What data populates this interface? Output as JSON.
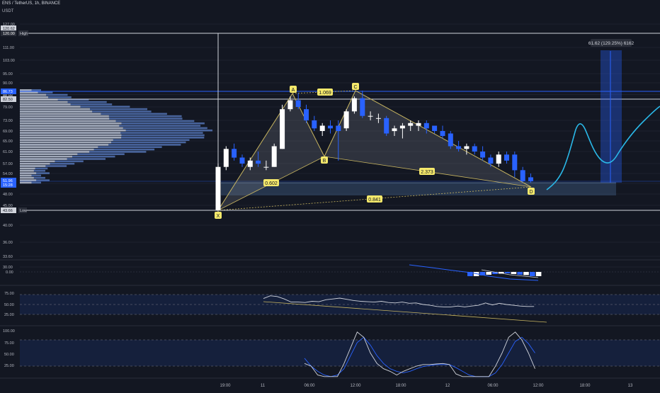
{
  "header": {
    "symbol": "ENS / TetherUS, 1h, BINANCE",
    "currency": "USDT"
  },
  "colors": {
    "background": "#131722",
    "bull_candle": "#ffffff",
    "bear_candle": "#2962ff",
    "pattern_line": "#c8b560",
    "pattern_fill": "#787b86",
    "forecast_line": "#2ab8e8",
    "target_box": "#2962ff",
    "zone_band": "#3d5a80",
    "volume_profile_up": "#5b7fc7",
    "volume_profile_down": "#b2b5be"
  },
  "price_axis": {
    "labels": [
      "127.00",
      "111.00",
      "103.00",
      "95.00",
      "90.00",
      "85.00",
      "79.00",
      "73.00",
      "69.00",
      "65.00",
      "61.00",
      "57.00",
      "54.00",
      "50.00",
      "48.00",
      "45.00",
      "40.00",
      "36.00",
      "33.60",
      "30.00"
    ],
    "badges": [
      {
        "text": "120.62",
        "style": "light"
      },
      {
        "text": "120.00",
        "style": "dark"
      },
      {
        "text": "86.73",
        "style": "blue"
      },
      {
        "text": "85.00",
        "style": "plain"
      },
      {
        "text": "82.50",
        "style": "light"
      },
      {
        "text": "51.96",
        "style": "blue"
      },
      {
        "text": "15:28",
        "style": "blue"
      },
      {
        "text": "43.66",
        "style": "light"
      }
    ],
    "high_label": "High",
    "low_label": "Low"
  },
  "time_axis": {
    "labels": [
      "19:00",
      "11",
      "06:00",
      "12:00",
      "18:00",
      "12",
      "06:00",
      "12:00",
      "18:00",
      "13",
      "06:00"
    ]
  },
  "pattern": {
    "points": [
      "X",
      "A",
      "B",
      "C",
      "D"
    ],
    "ratios": {
      "xb": "0.602",
      "ac": "1.069",
      "bd": "2.373",
      "xd": "0.841"
    }
  },
  "target_tooltip": "61.62 (129.25%) 6162",
  "macd_axis": {
    "labels": [
      "0.00"
    ]
  },
  "rsi_axis": {
    "labels": [
      "75.00",
      "50.00",
      "25.00"
    ]
  },
  "stoch_axis": {
    "labels": [
      "100.00",
      "75.00",
      "50.00",
      "25.00"
    ]
  },
  "chart_data": {
    "type": "candlestick",
    "symbol": "ENS / TetherUS",
    "interval": "1h",
    "exchange": "BINANCE",
    "candles": [
      {
        "o": 43.7,
        "h": 57,
        "l": 43.7,
        "c": 56
      },
      {
        "o": 56,
        "h": 63,
        "l": 55,
        "c": 62
      },
      {
        "o": 62,
        "h": 64,
        "l": 58,
        "c": 59
      },
      {
        "o": 59,
        "h": 60,
        "l": 56,
        "c": 57
      },
      {
        "o": 56,
        "h": 59,
        "l": 55,
        "c": 58
      },
      {
        "o": 58,
        "h": 61,
        "l": 56,
        "c": 57
      },
      {
        "o": 56,
        "h": 58,
        "l": 55,
        "c": 56
      },
      {
        "o": 56,
        "h": 64,
        "l": 56,
        "c": 63
      },
      {
        "o": 62,
        "h": 80,
        "l": 62,
        "c": 78
      },
      {
        "o": 78,
        "h": 84,
        "l": 77,
        "c": 82
      },
      {
        "o": 82,
        "h": 86,
        "l": 78,
        "c": 79
      },
      {
        "o": 78,
        "h": 80,
        "l": 72,
        "c": 73
      },
      {
        "o": 73,
        "h": 75,
        "l": 69,
        "c": 70
      },
      {
        "o": 69,
        "h": 72,
        "l": 67,
        "c": 71
      },
      {
        "o": 71,
        "h": 73,
        "l": 68,
        "c": 70
      },
      {
        "o": 71,
        "h": 73,
        "l": 58,
        "c": 69
      },
      {
        "o": 70,
        "h": 78,
        "l": 69,
        "c": 77
      },
      {
        "o": 77,
        "h": 84,
        "l": 76,
        "c": 83
      },
      {
        "o": 83,
        "h": 87,
        "l": 74,
        "c": 75
      },
      {
        "o": 75,
        "h": 77,
        "l": 73,
        "c": 75
      },
      {
        "o": 74,
        "h": 76,
        "l": 72,
        "c": 74
      },
      {
        "o": 74,
        "h": 75,
        "l": 67,
        "c": 68
      },
      {
        "o": 69,
        "h": 71,
        "l": 67,
        "c": 70
      },
      {
        "o": 70,
        "h": 72,
        "l": 66,
        "c": 71
      },
      {
        "o": 71,
        "h": 73,
        "l": 69,
        "c": 72
      },
      {
        "o": 71,
        "h": 73,
        "l": 69,
        "c": 72
      },
      {
        "o": 72,
        "h": 73,
        "l": 68,
        "c": 70
      },
      {
        "o": 71,
        "h": 71,
        "l": 68,
        "c": 69
      },
      {
        "o": 69,
        "h": 71,
        "l": 66,
        "c": 67
      },
      {
        "o": 68,
        "h": 69,
        "l": 62,
        "c": 63
      },
      {
        "o": 63,
        "h": 65,
        "l": 61,
        "c": 62
      },
      {
        "o": 62,
        "h": 64,
        "l": 60,
        "c": 63
      },
      {
        "o": 63,
        "h": 64,
        "l": 60,
        "c": 61
      },
      {
        "o": 61,
        "h": 63,
        "l": 58,
        "c": 59
      },
      {
        "o": 59,
        "h": 60,
        "l": 56,
        "c": 57
      },
      {
        "o": 57,
        "h": 61,
        "l": 56,
        "c": 60
      },
      {
        "o": 60,
        "h": 61,
        "l": 57,
        "c": 58
      },
      {
        "o": 60,
        "h": 61,
        "l": 53,
        "c": 55
      },
      {
        "o": 55,
        "h": 56,
        "l": 51,
        "c": 52
      },
      {
        "o": 53,
        "h": 54,
        "l": 51,
        "c": 52
      }
    ],
    "pattern_points": {
      "X": 43.66,
      "A": 85.5,
      "B": 61.2,
      "C": 87.4,
      "D": 50.9
    },
    "levels": {
      "high": 120,
      "low": 43.66,
      "line_82_50": 82.5,
      "line_86_73": 86.73,
      "zone": [
        45.5,
        50.8
      ]
    },
    "forecast_curve": [
      50,
      54,
      61,
      69,
      74,
      69,
      60,
      56,
      58,
      64,
      69,
      74,
      78,
      80
    ],
    "target_range": [
      50.8,
      112.4
    ],
    "macd_histogram": [
      -0.6,
      -0.6,
      -0.5,
      -0.4,
      -0.3,
      -0.25,
      -0.2,
      -0.3,
      -0.4,
      -0.45,
      -0.6,
      -0.6
    ],
    "rsi": [
      65,
      72,
      70,
      64,
      56,
      56,
      55,
      58,
      57,
      62,
      64,
      66,
      63,
      60,
      58,
      57,
      56,
      58,
      55,
      54,
      56,
      53,
      54,
      50,
      48,
      45,
      44,
      44,
      46,
      44,
      46,
      48,
      54,
      49,
      53,
      50,
      48,
      46,
      45,
      45
    ],
    "stochastic_k": [
      30,
      25,
      8,
      5,
      5,
      5,
      30,
      60,
      90,
      80,
      50,
      30,
      20,
      15,
      8,
      15,
      20,
      25,
      28,
      28,
      29,
      30,
      28,
      10,
      5,
      5,
      5,
      5,
      5,
      25,
      50,
      80,
      90,
      75,
      50,
      20
    ],
    "stochastic_d": [
      40,
      25,
      15,
      8,
      5,
      8,
      20,
      45,
      70,
      80,
      65,
      45,
      30,
      20,
      15,
      12,
      15,
      20,
      24,
      26,
      28,
      28,
      28,
      22,
      15,
      8,
      5,
      5,
      5,
      12,
      28,
      50,
      72,
      80,
      68,
      50
    ]
  }
}
